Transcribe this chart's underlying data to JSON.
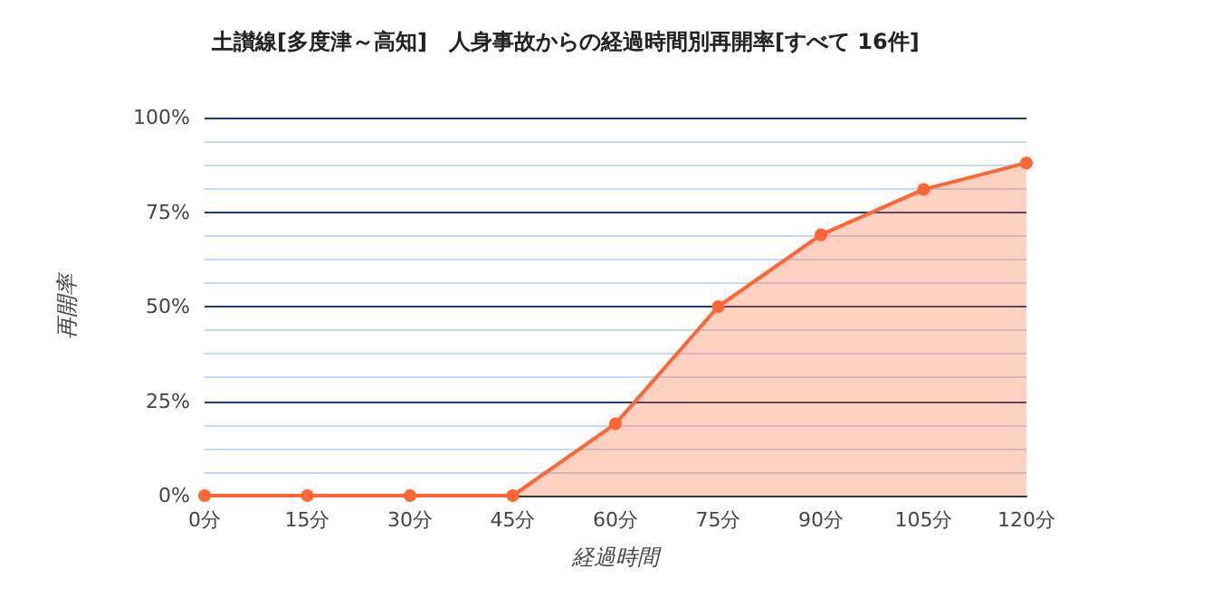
{
  "chart_data": {
    "type": "area",
    "title": "土讃線[多度津～高知]　人身事故からの経過時間別再開率[すべて 16件]",
    "xlabel": "経過時間",
    "ylabel": "再開率",
    "x": [
      0,
      15,
      30,
      45,
      60,
      75,
      90,
      105,
      120
    ],
    "series": [
      {
        "color": "#ff6633",
        "values": [
          0,
          0,
          0,
          0,
          19,
          50,
          69,
          81,
          88
        ]
      }
    ],
    "xlim": [
      0,
      120
    ],
    "xticks": [
      {
        "value": 0,
        "label": "0分"
      },
      {
        "value": 15,
        "label": "15分"
      },
      {
        "value": 30,
        "label": "30分"
      },
      {
        "value": 45,
        "label": "45分"
      },
      {
        "value": 60,
        "label": "60分"
      },
      {
        "value": 75,
        "label": "75分"
      },
      {
        "value": 90,
        "label": "90分"
      },
      {
        "value": 105,
        "label": "105分"
      },
      {
        "value": 120,
        "label": "120分"
      }
    ],
    "ylim": [
      0,
      100
    ],
    "yticks": [
      {
        "value": 0,
        "label": "0%"
      },
      {
        "value": 6.25,
        "label": null
      },
      {
        "value": 12.5,
        "label": null
      },
      {
        "value": 18.75,
        "label": null
      },
      {
        "value": 25,
        "label": "25%"
      },
      {
        "value": 31.25,
        "label": null
      },
      {
        "value": 37.5,
        "label": null
      },
      {
        "value": 43.75,
        "label": null
      },
      {
        "value": 50,
        "label": "50%"
      },
      {
        "value": 56.25,
        "label": null
      },
      {
        "value": 62.5,
        "label": null
      },
      {
        "value": 68.75,
        "label": null
      },
      {
        "value": 75,
        "label": "75%"
      },
      {
        "value": 81.25,
        "label": null
      },
      {
        "value": 87.5,
        "label": null
      },
      {
        "value": 93.75,
        "label": null
      },
      {
        "value": 100,
        "label": "100%"
      }
    ],
    "grid": "y",
    "marker": "circle",
    "line_style": "solid"
  }
}
